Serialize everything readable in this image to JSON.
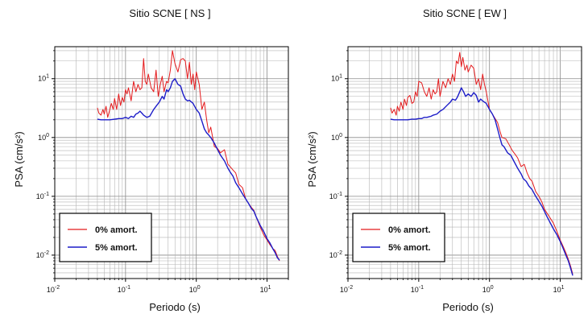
{
  "chart_data": [
    {
      "type": "line",
      "title": "Sitio SCNE [ NS ]",
      "xlabel": "Periodo (s)",
      "ylabel": "PSA (cm/s²)",
      "x_scale": "log",
      "y_scale": "log",
      "xlim": [
        0.01,
        20
      ],
      "ylim": [
        0.004,
        35
      ],
      "x_ticks": [
        {
          "value": 0.01,
          "base": "10",
          "exp": "-2"
        },
        {
          "value": 0.1,
          "base": "10",
          "exp": "-1"
        },
        {
          "value": 1,
          "base": "10",
          "exp": "0"
        },
        {
          "value": 10,
          "base": "10",
          "exp": "1"
        }
      ],
      "y_ticks": [
        {
          "value": 0.01,
          "base": "10",
          "exp": "-2"
        },
        {
          "value": 0.1,
          "base": "10",
          "exp": "-1"
        },
        {
          "value": 1,
          "base": "10",
          "exp": "0"
        },
        {
          "value": 10,
          "base": "10",
          "exp": "1"
        }
      ],
      "grid": true,
      "legend_position": "bottom-left",
      "series": [
        {
          "name": "0% amort.",
          "color": "#e41a1c",
          "x": [
            0.04,
            0.042,
            0.045,
            0.048,
            0.05,
            0.053,
            0.056,
            0.06,
            0.063,
            0.067,
            0.07,
            0.075,
            0.08,
            0.085,
            0.09,
            0.095,
            0.1,
            0.105,
            0.11,
            0.12,
            0.13,
            0.14,
            0.15,
            0.16,
            0.17,
            0.18,
            0.19,
            0.2,
            0.21,
            0.23,
            0.25,
            0.27,
            0.29,
            0.31,
            0.33,
            0.35,
            0.38,
            0.4,
            0.43,
            0.46,
            0.5,
            0.55,
            0.6,
            0.65,
            0.7,
            0.75,
            0.8,
            0.85,
            0.9,
            0.95,
            1.0,
            1.1,
            1.2,
            1.3,
            1.4,
            1.5,
            1.6,
            1.8,
            2.0,
            2.2,
            2.5,
            2.8,
            3.0,
            3.3,
            3.6,
            4.0,
            4.5,
            5.0,
            5.5,
            6.0,
            6.5,
            7.0,
            8.0,
            9.0,
            10.0,
            11.0,
            12.0,
            13.0,
            14.0,
            15.0
          ],
          "y": [
            3.2,
            2.6,
            2.4,
            3.0,
            2.5,
            3.4,
            2.2,
            3.0,
            3.8,
            3.0,
            4.6,
            3.0,
            5.5,
            3.5,
            4.8,
            4.0,
            6.5,
            5.5,
            7.0,
            4.2,
            9.0,
            6.0,
            8.0,
            6.5,
            7.0,
            22,
            9.0,
            8.0,
            12,
            7.0,
            6.0,
            14,
            5.0,
            8.0,
            11,
            6.0,
            9.0,
            8.5,
            14,
            30,
            18,
            13,
            21,
            22,
            20,
            10,
            19,
            8.0,
            12,
            6.5,
            13,
            8.0,
            3.0,
            4.0,
            2.0,
            1.2,
            1.5,
            0.7,
            0.65,
            0.55,
            0.62,
            0.35,
            0.32,
            0.28,
            0.25,
            0.16,
            0.14,
            0.09,
            0.075,
            0.065,
            0.058,
            0.045,
            0.03,
            0.022,
            0.018,
            0.015,
            0.013,
            0.012,
            0.0095,
            0.008
          ]
        },
        {
          "name": "5% amort.",
          "color": "#1c1cc8",
          "x": [
            0.04,
            0.045,
            0.05,
            0.06,
            0.07,
            0.08,
            0.09,
            0.1,
            0.11,
            0.12,
            0.13,
            0.14,
            0.15,
            0.16,
            0.17,
            0.18,
            0.2,
            0.22,
            0.25,
            0.28,
            0.3,
            0.33,
            0.35,
            0.38,
            0.4,
            0.43,
            0.46,
            0.5,
            0.55,
            0.6,
            0.65,
            0.7,
            0.75,
            0.8,
            0.9,
            1.0,
            1.1,
            1.2,
            1.3,
            1.4,
            1.5,
            1.6,
            1.8,
            2.0,
            2.2,
            2.5,
            2.8,
            3.0,
            3.3,
            3.6,
            4.0,
            4.5,
            5.0,
            5.5,
            6.0,
            6.5,
            7.0,
            8.0,
            9.0,
            10.0,
            11.0,
            12.0,
            13.0,
            14.0,
            15.0
          ],
          "y": [
            2.05,
            2.0,
            2.0,
            2.0,
            2.05,
            2.1,
            2.1,
            2.2,
            2.1,
            2.3,
            2.2,
            2.5,
            2.6,
            2.8,
            2.6,
            2.4,
            2.2,
            2.3,
            3.0,
            3.6,
            4.0,
            5.0,
            4.5,
            6.5,
            6.0,
            7.0,
            9.0,
            10.0,
            8.0,
            7.5,
            5.5,
            4.5,
            4.2,
            4.3,
            3.8,
            3.0,
            2.6,
            1.9,
            1.4,
            1.2,
            1.1,
            1.0,
            0.8,
            0.62,
            0.5,
            0.4,
            0.3,
            0.26,
            0.22,
            0.17,
            0.14,
            0.11,
            0.09,
            0.075,
            0.062,
            0.056,
            0.045,
            0.032,
            0.025,
            0.019,
            0.016,
            0.013,
            0.011,
            0.009,
            0.0082
          ]
        }
      ]
    },
    {
      "type": "line",
      "title": "Sitio SCNE [ EW ]",
      "xlabel": "Periodo (s)",
      "ylabel": "PSA (cm/s²)",
      "x_scale": "log",
      "y_scale": "log",
      "xlim": [
        0.01,
        20
      ],
      "ylim": [
        0.004,
        35
      ],
      "x_ticks": [
        {
          "value": 0.01,
          "base": "10",
          "exp": "-2"
        },
        {
          "value": 0.1,
          "base": "10",
          "exp": "-1"
        },
        {
          "value": 1,
          "base": "10",
          "exp": "0"
        },
        {
          "value": 10,
          "base": "10",
          "exp": "1"
        }
      ],
      "y_ticks": [
        {
          "value": 0.01,
          "base": "10",
          "exp": "-2"
        },
        {
          "value": 0.1,
          "base": "10",
          "exp": "-1"
        },
        {
          "value": 1,
          "base": "10",
          "exp": "0"
        },
        {
          "value": 10,
          "base": "10",
          "exp": "1"
        }
      ],
      "grid": true,
      "legend_position": "bottom-left",
      "series": [
        {
          "name": "0% amort.",
          "color": "#e41a1c",
          "x": [
            0.04,
            0.042,
            0.045,
            0.048,
            0.05,
            0.053,
            0.056,
            0.06,
            0.063,
            0.067,
            0.07,
            0.075,
            0.08,
            0.085,
            0.09,
            0.095,
            0.1,
            0.11,
            0.12,
            0.13,
            0.14,
            0.15,
            0.16,
            0.17,
            0.18,
            0.19,
            0.2,
            0.22,
            0.24,
            0.26,
            0.28,
            0.3,
            0.32,
            0.34,
            0.36,
            0.38,
            0.4,
            0.42,
            0.45,
            0.48,
            0.5,
            0.55,
            0.6,
            0.65,
            0.7,
            0.75,
            0.8,
            0.85,
            0.9,
            1.0,
            1.1,
            1.2,
            1.3,
            1.4,
            1.5,
            1.7,
            1.9,
            2.1,
            2.3,
            2.5,
            2.8,
            3.1,
            3.4,
            3.7,
            4.0,
            4.5,
            5.0,
            5.5,
            6.0,
            7.0,
            8.0,
            9.0,
            10.0,
            11.0,
            12.0,
            13.0,
            14.0,
            15.0
          ],
          "y": [
            3.2,
            2.6,
            3.0,
            2.4,
            3.4,
            2.8,
            4.0,
            3.0,
            4.5,
            3.5,
            4.8,
            5.2,
            3.8,
            4.0,
            6.0,
            5.0,
            9.0,
            8.5,
            6.0,
            5.0,
            7.0,
            4.5,
            6.5,
            5.5,
            6.0,
            10,
            5.0,
            9.0,
            7.0,
            10,
            8.0,
            12,
            9.0,
            20,
            18,
            28,
            16,
            23,
            14,
            17,
            13,
            17,
            15,
            8.0,
            10,
            6.5,
            12,
            8.0,
            6.0,
            3.0,
            2.5,
            2.1,
            1.8,
            1.3,
            1.0,
            0.95,
            0.75,
            0.6,
            0.52,
            0.45,
            0.32,
            0.35,
            0.25,
            0.2,
            0.18,
            0.12,
            0.1,
            0.08,
            0.06,
            0.045,
            0.035,
            0.025,
            0.018,
            0.014,
            0.011,
            0.0085,
            0.0065,
            0.0048
          ]
        },
        {
          "name": "5% amort.",
          "color": "#1c1cc8",
          "x": [
            0.04,
            0.045,
            0.05,
            0.06,
            0.07,
            0.08,
            0.09,
            0.1,
            0.11,
            0.12,
            0.13,
            0.14,
            0.15,
            0.16,
            0.18,
            0.2,
            0.22,
            0.25,
            0.28,
            0.3,
            0.33,
            0.35,
            0.38,
            0.4,
            0.43,
            0.46,
            0.5,
            0.55,
            0.6,
            0.65,
            0.7,
            0.75,
            0.8,
            0.9,
            1.0,
            1.1,
            1.2,
            1.3,
            1.4,
            1.5,
            1.6,
            1.8,
            2.0,
            2.2,
            2.5,
            2.8,
            3.0,
            3.3,
            3.6,
            4.0,
            4.5,
            5.0,
            5.5,
            6.0,
            6.5,
            7.0,
            8.0,
            9.0,
            10.0,
            11.0,
            12.0,
            13.0,
            14.0,
            15.0
          ],
          "y": [
            2.05,
            2.0,
            2.0,
            2.0,
            2.0,
            2.05,
            2.05,
            2.1,
            2.1,
            2.2,
            2.2,
            2.25,
            2.3,
            2.4,
            2.5,
            2.8,
            3.0,
            3.5,
            4.0,
            4.5,
            4.3,
            4.8,
            6.0,
            7.0,
            6.0,
            5.0,
            5.5,
            5.0,
            5.8,
            5.2,
            4.0,
            4.5,
            4.2,
            3.8,
            3.0,
            2.5,
            2.0,
            1.4,
            1.0,
            0.75,
            0.7,
            0.55,
            0.5,
            0.4,
            0.3,
            0.24,
            0.2,
            0.18,
            0.15,
            0.13,
            0.1,
            0.082,
            0.068,
            0.055,
            0.045,
            0.038,
            0.028,
            0.022,
            0.017,
            0.013,
            0.01,
            0.008,
            0.006,
            0.0045
          ]
        }
      ]
    }
  ]
}
